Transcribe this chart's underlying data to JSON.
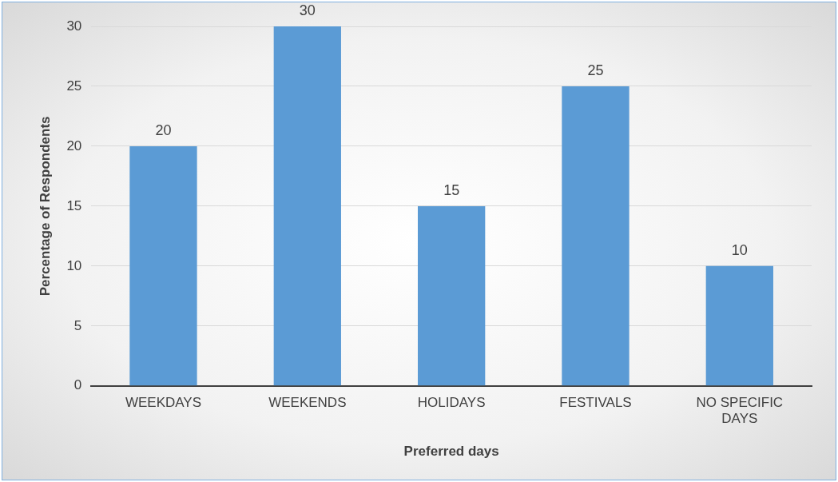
{
  "chart_data": {
    "type": "bar",
    "categories": [
      "WEEKDAYS",
      "WEEKENDS",
      "HOLIDAYS",
      "FESTIVALS",
      "NO SPECIFIC DAYS"
    ],
    "values": [
      20,
      30,
      15,
      25,
      10
    ],
    "color": "#5b9bd5",
    "xlabel": "Preferred days",
    "ylabel": "Percentage of Respondents",
    "ylim": [
      0,
      30
    ],
    "yticks": [
      0,
      5,
      10,
      15,
      20,
      25,
      30
    ],
    "grid": "y",
    "data_labels": true,
    "legend": false
  }
}
